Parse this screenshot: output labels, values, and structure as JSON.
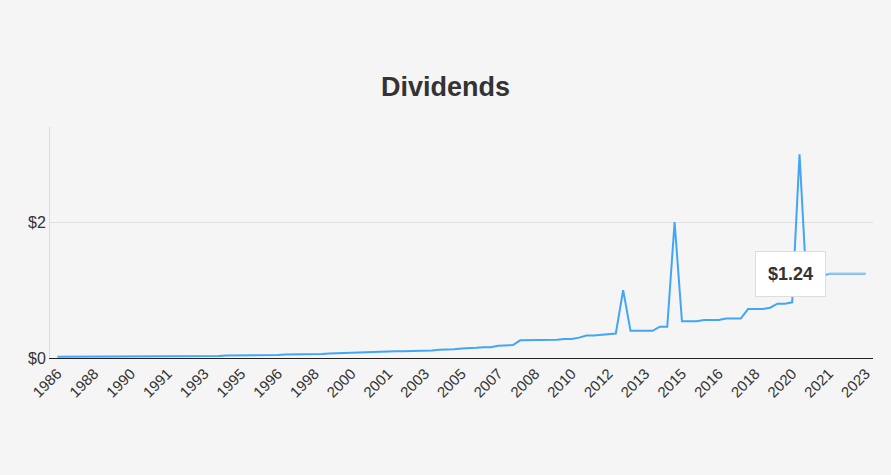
{
  "chart_data": {
    "type": "line",
    "title": "Dividends",
    "color": "#42a5f5",
    "grid": true,
    "categories": [
      "1986",
      null,
      null,
      null,
      null,
      "1988",
      null,
      null,
      null,
      null,
      "1990",
      null,
      null,
      null,
      null,
      "1991",
      null,
      null,
      null,
      null,
      "1993",
      null,
      null,
      null,
      null,
      "1995",
      null,
      null,
      null,
      null,
      "1996",
      null,
      null,
      null,
      null,
      "1998",
      null,
      null,
      null,
      null,
      "2000",
      null,
      null,
      null,
      null,
      "2001",
      null,
      null,
      null,
      null,
      "2003",
      null,
      null,
      null,
      null,
      "2005",
      null,
      null,
      null,
      null,
      "2007",
      null,
      null,
      null,
      null,
      "2008",
      null,
      null,
      null,
      null,
      "2010",
      null,
      null,
      null,
      null,
      "2012",
      null,
      null,
      null,
      null,
      "2013",
      null,
      null,
      null,
      null,
      "2015",
      null,
      null,
      null,
      null,
      "2016",
      null,
      null,
      null,
      null,
      "2018",
      null,
      null,
      null,
      null,
      "2020",
      null,
      null,
      null,
      null,
      "2021",
      null,
      null,
      null,
      null,
      "2023"
    ],
    "values": [
      0.02,
      0.02,
      0.02,
      0.02,
      0.02,
      0.02,
      0.02,
      0.02,
      0.02,
      0.02,
      0.025,
      0.025,
      0.025,
      0.025,
      0.025,
      0.025,
      0.025,
      0.025,
      0.025,
      0.025,
      0.03,
      0.03,
      0.03,
      0.035,
      0.035,
      0.035,
      0.04,
      0.04,
      0.04,
      0.045,
      0.045,
      0.05,
      0.05,
      0.05,
      0.055,
      0.06,
      0.06,
      0.065,
      0.07,
      0.07,
      0.08,
      0.08,
      0.085,
      0.09,
      0.09,
      0.095,
      0.1,
      0.1,
      0.1,
      0.105,
      0.11,
      0.11,
      0.12,
      0.12,
      0.13,
      0.14,
      0.14,
      0.15,
      0.16,
      0.16,
      0.18,
      0.18,
      0.19,
      0.26,
      0.26,
      0.26,
      0.27,
      0.27,
      0.27,
      0.28,
      0.28,
      0.3,
      0.33,
      0.33,
      0.34,
      0.36,
      0.36,
      1.0,
      0.4,
      0.4,
      0.4,
      0.4,
      0.46,
      0.46,
      2.0,
      0.54,
      0.54,
      0.54,
      0.56,
      0.56,
      0.56,
      0.58,
      0.58,
      0.58,
      0.72,
      0.72,
      0.72,
      0.74,
      0.8,
      0.8,
      0.82,
      3.0,
      1.0,
      1.1,
      1.2,
      1.24,
      1.24,
      1.24,
      1.24,
      1.24,
      1.24
    ],
    "ylim": [
      0,
      3.4
    ],
    "yticks": [
      {
        "value": 0,
        "label": "$0"
      },
      {
        "value": 2,
        "label": "$2"
      }
    ],
    "annotations": [
      {
        "text": "$1.24",
        "x": "2023",
        "y": 1.24
      }
    ]
  }
}
